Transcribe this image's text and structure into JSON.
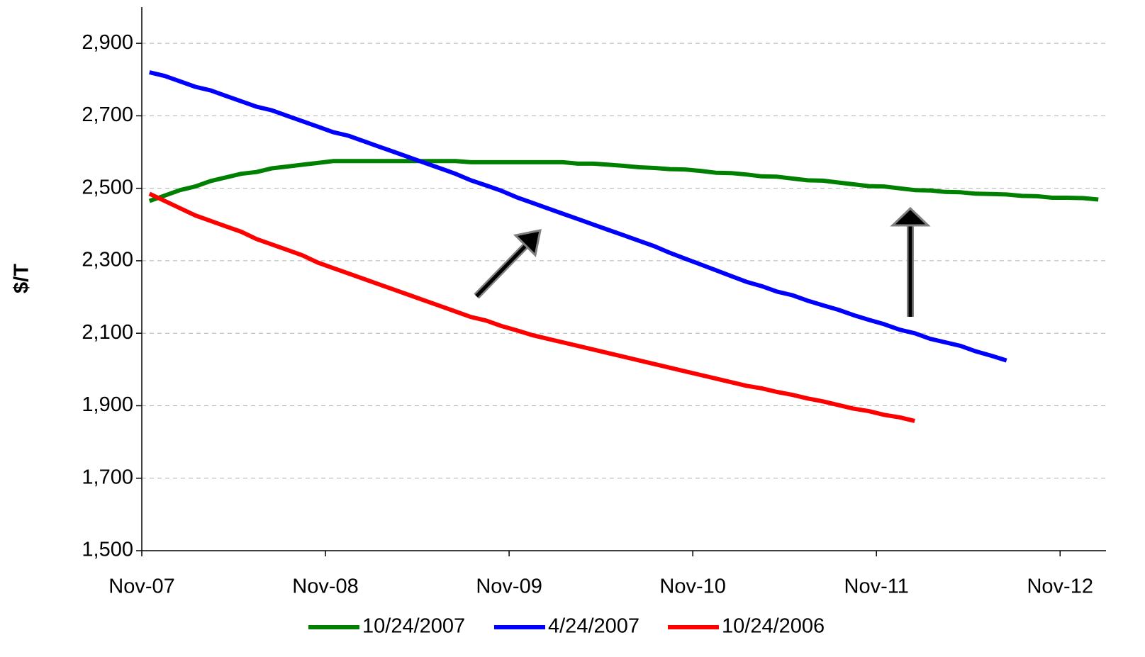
{
  "chart_data": {
    "type": "line",
    "y_label": "$/T",
    "categories": [
      "Nov-07",
      null,
      null,
      null,
      null,
      null,
      null,
      null,
      null,
      null,
      null,
      null,
      "Nov-08",
      null,
      null,
      null,
      null,
      null,
      null,
      null,
      null,
      null,
      null,
      null,
      "Nov-09",
      null,
      null,
      null,
      null,
      null,
      null,
      null,
      null,
      null,
      null,
      null,
      "Nov-10",
      null,
      null,
      null,
      null,
      null,
      null,
      null,
      null,
      null,
      null,
      null,
      "Nov-11",
      null,
      null,
      null,
      null,
      null,
      null,
      null,
      null,
      null,
      null,
      null,
      "Nov-12",
      null,
      null
    ],
    "series": [
      {
        "name": "10/24/2007",
        "color": "#008000",
        "values": [
          2465,
          2480,
          2495,
          2505,
          2520,
          2530,
          2540,
          2545,
          2555,
          2560,
          2565,
          2570,
          2575,
          2575,
          2575,
          2575,
          2575,
          2575,
          2575,
          2575,
          2575,
          2572,
          2572,
          2572,
          2572,
          2572,
          2572,
          2572,
          2568,
          2568,
          2565,
          2562,
          2558,
          2556,
          2553,
          2552,
          2548,
          2543,
          2542,
          2538,
          2533,
          2532,
          2527,
          2522,
          2521,
          2516,
          2511,
          2506,
          2505,
          2500,
          2495,
          2494,
          2490,
          2489,
          2485,
          2484,
          2483,
          2479,
          2478,
          2474,
          2474,
          2473,
          2469
        ]
      },
      {
        "name": "4/24/2007",
        "color": "#0000ff",
        "values": [
          2820,
          2810,
          2795,
          2780,
          2770,
          2755,
          2740,
          2725,
          2715,
          2700,
          2685,
          2670,
          2655,
          2645,
          2630,
          2615,
          2600,
          2585,
          2570,
          2555,
          2540,
          2522,
          2508,
          2493,
          2475,
          2460,
          2445,
          2430,
          2415,
          2400,
          2385,
          2370,
          2355,
          2340,
          2322,
          2306,
          2290,
          2274,
          2258,
          2242,
          2230,
          2215,
          2205,
          2190,
          2177,
          2165,
          2150,
          2137,
          2125,
          2110,
          2100,
          2085,
          2075,
          2065,
          2050,
          2038,
          2025,
          null,
          null,
          null,
          null,
          null,
          null
        ]
      },
      {
        "name": "10/24/2006",
        "color": "#ff0000",
        "values": [
          2485,
          2465,
          2445,
          2425,
          2410,
          2395,
          2380,
          2360,
          2345,
          2330,
          2315,
          2295,
          2280,
          2265,
          2250,
          2235,
          2220,
          2205,
          2190,
          2175,
          2160,
          2145,
          2135,
          2120,
          2108,
          2095,
          2085,
          2075,
          2065,
          2055,
          2045,
          2035,
          2025,
          2015,
          2005,
          1995,
          1985,
          1975,
          1965,
          1955,
          1948,
          1938,
          1930,
          1920,
          1912,
          1902,
          1892,
          1885,
          1875,
          1868,
          1858,
          null,
          null,
          null,
          null,
          null,
          null,
          null,
          null,
          null,
          null,
          null,
          null
        ]
      }
    ],
    "ylim": [
      1500,
      3000
    ],
    "yticks": [
      {
        "value": 1500,
        "label": "1,500"
      },
      {
        "value": 1700,
        "label": "1,700"
      },
      {
        "value": 1900,
        "label": "1,900"
      },
      {
        "value": 2100,
        "label": "2,100"
      },
      {
        "value": 2300,
        "label": "2,300"
      },
      {
        "value": 2500,
        "label": "2,500"
      },
      {
        "value": 2700,
        "label": "2,700"
      },
      {
        "value": 2900,
        "label": "2,900"
      }
    ],
    "grid": true,
    "legend": "bottom"
  }
}
